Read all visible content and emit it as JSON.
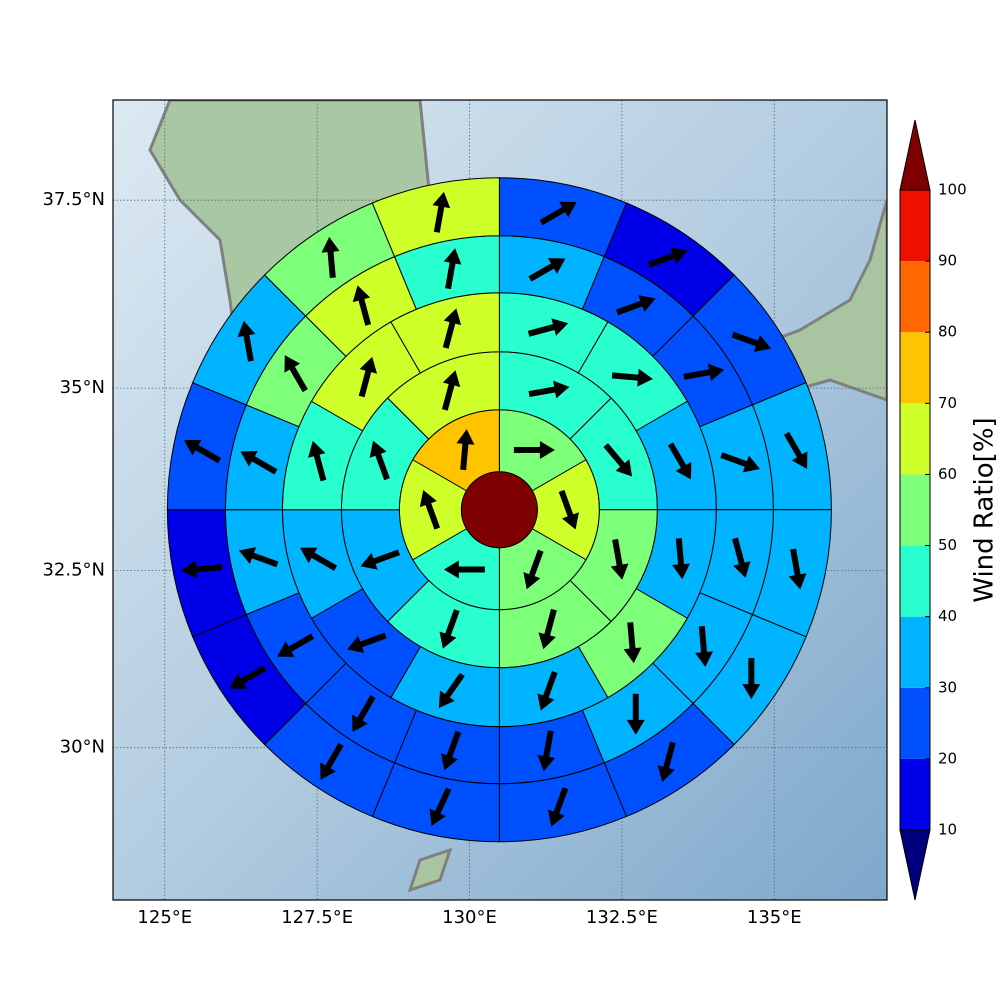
{
  "chart_data": {
    "type": "polar-sectors",
    "projection": "mercator",
    "xlim": [
      124.15,
      136.85
    ],
    "ylim": [
      27.8,
      38.8
    ],
    "xticks": [
      {
        "value": 125,
        "label": "125°E"
      },
      {
        "value": 127.5,
        "label": "127.5°E"
      },
      {
        "value": 130,
        "label": "130°E"
      },
      {
        "value": 132.5,
        "label": "132.5°E"
      },
      {
        "value": 135,
        "label": "135°E"
      }
    ],
    "yticks": [
      {
        "value": 30,
        "label": "30°N"
      },
      {
        "value": 32.5,
        "label": "32.5°N"
      },
      {
        "value": 35,
        "label": "35°N"
      },
      {
        "value": 37.5,
        "label": "37.5°N"
      }
    ],
    "grid": true,
    "center": [
      130.49,
      33.34
    ],
    "center_color": "#7f0000",
    "rings": [
      {
        "values": [
          55,
          65,
          55,
          45,
          65,
          75
        ],
        "directions": [
          90,
          160,
          200,
          270,
          340,
          5
        ]
      },
      {
        "values": [
          45,
          45,
          55,
          55,
          45,
          35,
          45,
          65
        ],
        "directions": [
          80,
          140,
          170,
          195,
          200,
          250,
          340,
          15
        ]
      },
      {
        "values": [
          45,
          45,
          35,
          35,
          55,
          35,
          35,
          25,
          35,
          45,
          65,
          65
        ],
        "directions": [
          75,
          95,
          150,
          175,
          175,
          200,
          215,
          250,
          300,
          345,
          15,
          15
        ]
      },
      {
        "values": [
          35,
          25,
          25,
          35,
          35,
          35,
          35,
          25,
          25,
          25,
          25,
          35,
          35,
          55,
          65,
          45
        ],
        "directions": [
          60,
          70,
          80,
          110,
          165,
          175,
          180,
          190,
          200,
          210,
          240,
          290,
          300,
          330,
          345,
          10
        ]
      },
      {
        "values": [
          25,
          15,
          25,
          35,
          35,
          35,
          25,
          25,
          25,
          25,
          15,
          15,
          25,
          35,
          55,
          65
        ],
        "directions": [
          60,
          70,
          110,
          150,
          170,
          180,
          195,
          200,
          205,
          210,
          240,
          265,
          300,
          350,
          355,
          10
        ]
      }
    ],
    "colorbar": {
      "label": "Wind Ratio[%]",
      "levels": [
        10,
        20,
        30,
        40,
        50,
        60,
        70,
        80,
        90,
        100
      ],
      "colors": [
        "#00007f",
        "#0000e8",
        "#0050ff",
        "#00b4ff",
        "#29ffce",
        "#7dff7a",
        "#ceff29",
        "#ffc400",
        "#ff6800",
        "#f01000",
        "#7f0000"
      ],
      "ticks": [
        10,
        20,
        30,
        40,
        50,
        60,
        70,
        80,
        90,
        100
      ]
    }
  }
}
